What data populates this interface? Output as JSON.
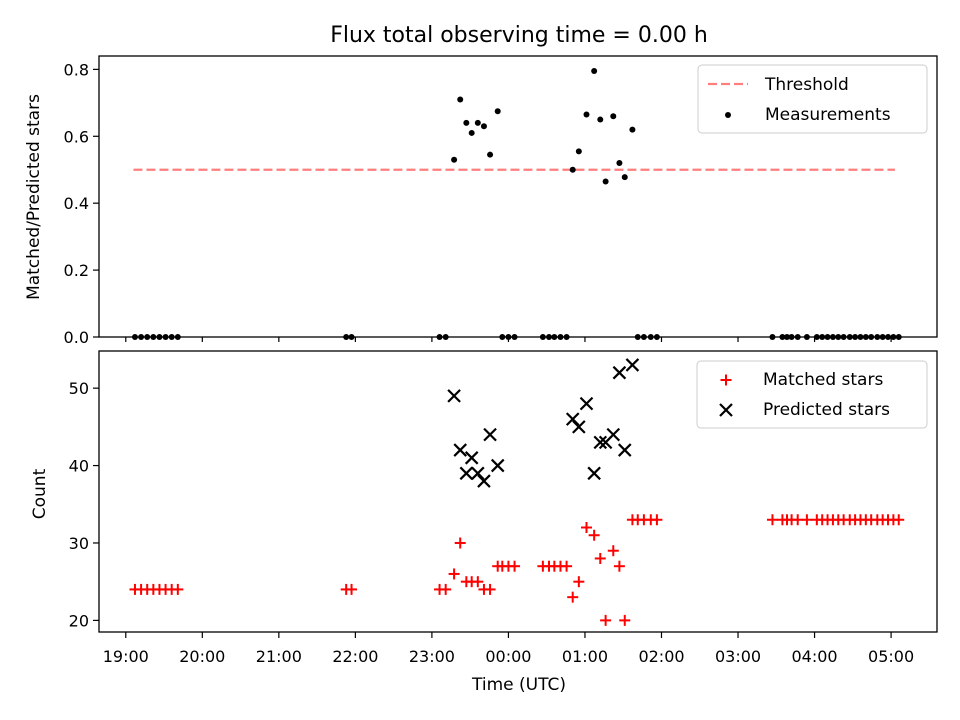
{
  "title": "Flux total observing time = 0.00 h",
  "chart_data": [
    {
      "type": "scatter",
      "panel": "top",
      "ylabel": "Matched/Predicted stars",
      "ylim": [
        0,
        0.84
      ],
      "yticks": [
        0.0,
        0.2,
        0.4,
        0.6,
        0.8
      ],
      "ytick_labels": [
        "0.0",
        "0.2",
        "0.4",
        "0.6",
        "0.8"
      ],
      "xlim": [
        18.65,
        29.6
      ],
      "grid": false,
      "legend": "top-right",
      "threshold": {
        "name": "Threshold",
        "value": 0.5,
        "x_range": [
          19.1,
          29.05
        ],
        "color": "#ff7f7f"
      },
      "series": [
        {
          "name": "Measurements",
          "color": "#000000",
          "x": [
            19.12,
            19.2,
            19.28,
            19.36,
            19.44,
            19.52,
            19.6,
            19.68,
            21.88,
            21.95,
            23.1,
            23.18,
            23.29,
            23.37,
            23.45,
            23.52,
            23.6,
            23.68,
            23.76,
            23.86,
            23.92,
            24.0,
            24.08,
            24.45,
            24.53,
            24.6,
            24.68,
            24.76,
            24.84,
            24.92,
            25.02,
            25.12,
            25.2,
            25.27,
            25.37,
            25.45,
            25.52,
            25.62,
            25.69,
            25.77,
            25.86,
            25.94,
            27.45,
            27.58,
            27.64,
            27.7,
            27.78,
            27.9,
            28.03,
            28.1,
            28.17,
            28.24,
            28.31,
            28.38,
            28.46,
            28.53,
            28.6,
            28.67,
            28.74,
            28.82,
            28.89,
            28.96,
            29.03,
            29.1
          ],
          "y": [
            0,
            0,
            0,
            0,
            0,
            0,
            0,
            0,
            0,
            0,
            0,
            0,
            0.53,
            0.71,
            0.64,
            0.61,
            0.64,
            0.63,
            0.545,
            0.675,
            0,
            0,
            0,
            0,
            0,
            0,
            0,
            0,
            0.5,
            0.555,
            0.665,
            0.795,
            0.65,
            0.465,
            0.66,
            0.52,
            0.478,
            0.62,
            0,
            0,
            0,
            0,
            0,
            0,
            0,
            0,
            0,
            0,
            0,
            0,
            0,
            0,
            0,
            0,
            0,
            0,
            0,
            0,
            0,
            0,
            0,
            0,
            0,
            0
          ]
        }
      ]
    },
    {
      "type": "scatter",
      "panel": "bottom",
      "xlabel": "Time (UTC)",
      "ylabel": "Count",
      "ylim": [
        18.5,
        54.8
      ],
      "yticks": [
        20,
        30,
        40,
        50
      ],
      "ytick_labels": [
        "20",
        "30",
        "40",
        "50"
      ],
      "xlim": [
        18.65,
        29.6
      ],
      "xticks": [
        19,
        20,
        21,
        22,
        23,
        24,
        25,
        26,
        27,
        28,
        29
      ],
      "xtick_labels": [
        "19:00",
        "20:00",
        "21:00",
        "22:00",
        "23:00",
        "00:00",
        "01:00",
        "02:00",
        "03:00",
        "04:00",
        "05:00"
      ],
      "grid": false,
      "legend": "top-right",
      "series": [
        {
          "name": "Matched stars",
          "marker": "plus",
          "color": "#ff0000",
          "x": [
            19.12,
            19.2,
            19.28,
            19.36,
            19.44,
            19.52,
            19.6,
            19.68,
            21.88,
            21.95,
            23.1,
            23.18,
            23.29,
            23.37,
            23.45,
            23.52,
            23.6,
            23.68,
            23.76,
            23.86,
            23.92,
            24.0,
            24.08,
            24.45,
            24.53,
            24.6,
            24.68,
            24.76,
            24.84,
            24.92,
            25.02,
            25.12,
            25.2,
            25.27,
            25.37,
            25.45,
            25.52,
            25.62,
            25.69,
            25.77,
            25.86,
            25.94,
            27.45,
            27.58,
            27.64,
            27.7,
            27.78,
            27.9,
            28.03,
            28.1,
            28.17,
            28.24,
            28.31,
            28.38,
            28.46,
            28.53,
            28.6,
            28.67,
            28.74,
            28.82,
            28.89,
            28.96,
            29.03,
            29.1
          ],
          "y": [
            24,
            24,
            24,
            24,
            24,
            24,
            24,
            24,
            24,
            24,
            24,
            24,
            26,
            30,
            25,
            25,
            25,
            24,
            24,
            27,
            27,
            27,
            27,
            27,
            27,
            27,
            27,
            27,
            23,
            25,
            32,
            31,
            28,
            20,
            29,
            27,
            20,
            33,
            33,
            33,
            33,
            33,
            33,
            33,
            33,
            33,
            33,
            33,
            33,
            33,
            33,
            33,
            33,
            33,
            33,
            33,
            33,
            33,
            33,
            33,
            33,
            33,
            33,
            33
          ]
        },
        {
          "name": "Predicted stars",
          "marker": "x",
          "color": "#000000",
          "x": [
            23.29,
            23.37,
            23.45,
            23.52,
            23.6,
            23.68,
            23.76,
            23.86,
            24.84,
            24.92,
            25.02,
            25.12,
            25.2,
            25.27,
            25.37,
            25.45,
            25.52,
            25.62
          ],
          "y": [
            49,
            42,
            39,
            41,
            39,
            38,
            44,
            40,
            46,
            45,
            48,
            39,
            43,
            43,
            44,
            52,
            42,
            53
          ]
        }
      ]
    }
  ]
}
